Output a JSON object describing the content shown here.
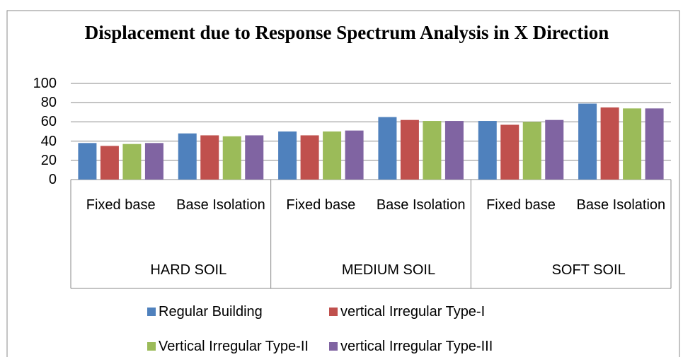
{
  "chart_data": {
    "type": "bar",
    "title": "Displacement due to Response Spectrum Analysis in X Direction",
    "categories": [
      "Fixed base",
      "Base Isolation",
      "Fixed base",
      "Base Isolation",
      "Fixed base",
      "Base Isolation"
    ],
    "groups": [
      "HARD SOIL",
      "MEDIUM SOIL",
      "SOFT SOIL"
    ],
    "series": [
      {
        "name": "Regular Building",
        "color": "#4f81bd",
        "values": [
          38,
          48,
          50,
          65,
          61,
          79
        ]
      },
      {
        "name": "vertical Irregular Type-I",
        "color": "#c0504d",
        "values": [
          35,
          46,
          46,
          62,
          57,
          75
        ]
      },
      {
        "name": "Vertical Irregular Type-II",
        "color": "#9bbb59",
        "values": [
          37,
          45,
          50,
          61,
          60,
          74
        ]
      },
      {
        "name": "vertical Irregular Type-III",
        "color": "#8064a2",
        "values": [
          38,
          46,
          51,
          61,
          62,
          74
        ]
      }
    ],
    "ylim": [
      0,
      100
    ],
    "yticks": [
      0,
      20,
      40,
      60,
      80,
      100
    ],
    "grid": true,
    "legend": "bottom"
  }
}
